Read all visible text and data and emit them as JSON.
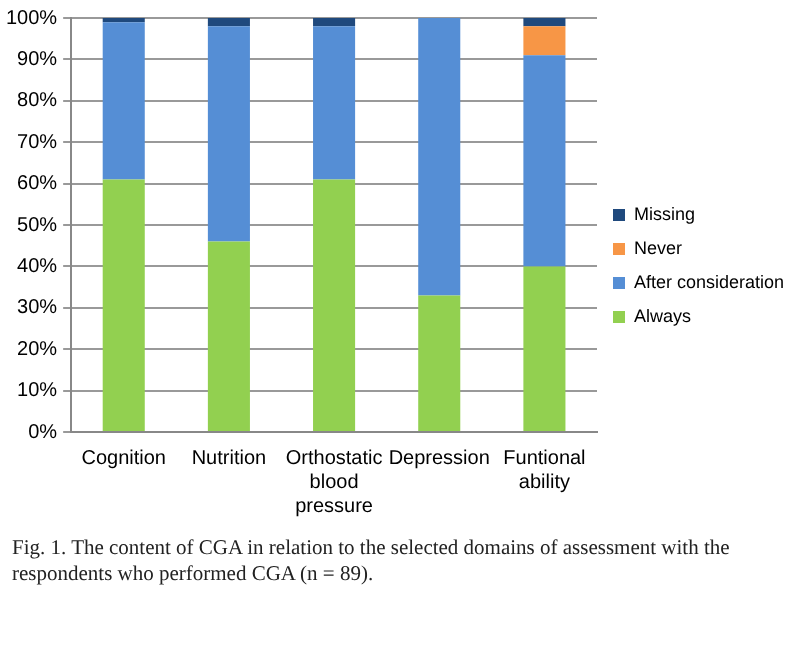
{
  "chart_data": {
    "type": "bar",
    "stacked": true,
    "categories": [
      "Cognition",
      "Nutrition",
      "Orthostatic blood pressure",
      "Depression",
      "Funtional ability"
    ],
    "series": [
      {
        "name": "Always",
        "color": "#92d050",
        "values": [
          61,
          46,
          61,
          33,
          40
        ]
      },
      {
        "name": "After consideration",
        "color": "#558ed5",
        "values": [
          38,
          52,
          37,
          67,
          51
        ]
      },
      {
        "name": "Never",
        "color": "#f79646",
        "values": [
          0,
          0,
          0,
          0,
          7
        ]
      },
      {
        "name": "Missing",
        "color": "#1f497d",
        "values": [
          1,
          2,
          2,
          0,
          2
        ]
      }
    ],
    "ylim": [
      0,
      100
    ],
    "yticks": [
      {
        "value": 0,
        "label": "0%"
      },
      {
        "value": 10,
        "label": "10%"
      },
      {
        "value": 20,
        "label": "20%"
      },
      {
        "value": 30,
        "label": "30%"
      },
      {
        "value": 40,
        "label": "40%"
      },
      {
        "value": 50,
        "label": "50%"
      },
      {
        "value": 60,
        "label": "60%"
      },
      {
        "value": 70,
        "label": "70%"
      },
      {
        "value": 80,
        "label": "80%"
      },
      {
        "value": 90,
        "label": "90%"
      },
      {
        "value": 100,
        "label": "100%"
      }
    ],
    "grid": "y",
    "legend": "right",
    "annotations": [
      "Fig. 1. The content of CGA in relation to the selected domains of assessment with the respondents who performed CGA (n = 89)."
    ]
  }
}
